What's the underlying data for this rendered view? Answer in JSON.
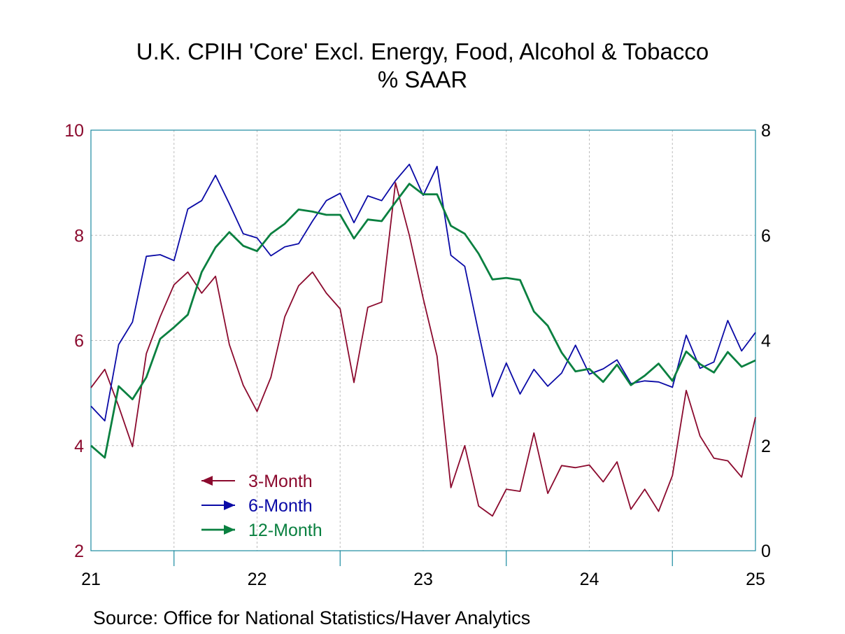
{
  "title": "U.K. CPIH 'Core' Excl. Energy, Food, Alcohol & Tobacco",
  "subtitle": "% SAAR",
  "source": "Source:  Office for National Statistics/Haver Analytics",
  "chart_data": {
    "type": "line",
    "x_ticks": [
      "21",
      "22",
      "23",
      "24",
      "25"
    ],
    "y_left": {
      "range": [
        2,
        10
      ],
      "ticks": [
        "2",
        "4",
        "6",
        "8",
        "10"
      ],
      "color": "#8b0a2e"
    },
    "y_right": {
      "range": [
        0,
        8
      ],
      "ticks": [
        "0",
        "2",
        "4",
        "6",
        "8"
      ]
    },
    "grid": true,
    "legend_position": "bottom-left",
    "months": [
      "2021-01",
      "2021-02",
      "2021-03",
      "2021-04",
      "2021-05",
      "2021-06",
      "2021-07",
      "2021-08",
      "2021-09",
      "2021-10",
      "2021-11",
      "2021-12",
      "2022-01",
      "2022-02",
      "2022-03",
      "2022-04",
      "2022-05",
      "2022-06",
      "2022-07",
      "2022-08",
      "2022-09",
      "2022-10",
      "2022-11",
      "2022-12",
      "2023-01",
      "2023-02",
      "2023-03",
      "2023-04",
      "2023-05",
      "2023-06",
      "2023-07",
      "2023-08",
      "2023-09",
      "2023-10",
      "2023-11",
      "2023-12",
      "2024-01",
      "2024-02",
      "2024-03",
      "2024-04",
      "2024-05",
      "2024-06",
      "2024-07",
      "2024-08",
      "2024-09",
      "2024-10",
      "2024-11",
      "2024-12",
      "2025-01"
    ],
    "series": [
      {
        "name": "3-Month",
        "axis": "left",
        "color": "#8b0a2e",
        "arrow": "left",
        "values": [
          5.1,
          5.45,
          4.75,
          3.98,
          5.75,
          6.45,
          7.06,
          7.3,
          6.9,
          7.22,
          5.92,
          5.15,
          4.65,
          5.3,
          6.45,
          7.04,
          7.3,
          6.9,
          6.6,
          5.2,
          6.63,
          6.73,
          9.0,
          8.0,
          6.8,
          5.7,
          3.2,
          4.0,
          2.85,
          2.66,
          3.17,
          3.13,
          4.24,
          3.09,
          3.62,
          3.58,
          3.63,
          3.31,
          3.69,
          2.79,
          3.17,
          2.75,
          3.43,
          5.05,
          4.18,
          3.76,
          3.71,
          3.4,
          4.54
        ]
      },
      {
        "name": "6-Month",
        "axis": "right",
        "color": "#0a0aa6",
        "arrow": "right",
        "values": [
          2.75,
          2.47,
          3.92,
          4.35,
          5.6,
          5.63,
          5.52,
          6.5,
          6.66,
          7.14,
          6.6,
          6.03,
          5.95,
          5.61,
          5.78,
          5.84,
          6.27,
          6.66,
          6.8,
          6.24,
          6.75,
          6.66,
          7.04,
          7.35,
          6.76,
          7.31,
          5.62,
          5.41,
          4.15,
          2.93,
          3.57,
          2.98,
          3.45,
          3.13,
          3.38,
          3.91,
          3.36,
          3.46,
          3.63,
          3.18,
          3.23,
          3.21,
          3.11,
          4.1,
          3.47,
          3.59,
          4.38,
          3.8,
          4.15
        ]
      },
      {
        "name": "12-Month",
        "axis": "right",
        "color": "#0a8040",
        "arrow": "right",
        "values": [
          2.0,
          1.77,
          3.13,
          2.88,
          3.3,
          4.03,
          4.25,
          4.49,
          5.3,
          5.77,
          6.06,
          5.8,
          5.7,
          6.03,
          6.22,
          6.49,
          6.45,
          6.39,
          6.39,
          5.94,
          6.3,
          6.27,
          6.63,
          6.98,
          6.78,
          6.78,
          6.18,
          6.03,
          5.65,
          5.16,
          5.19,
          5.15,
          4.55,
          4.28,
          3.77,
          3.41,
          3.46,
          3.21,
          3.54,
          3.15,
          3.33,
          3.56,
          3.23,
          3.79,
          3.55,
          3.39,
          3.78,
          3.5,
          3.62
        ]
      }
    ]
  }
}
